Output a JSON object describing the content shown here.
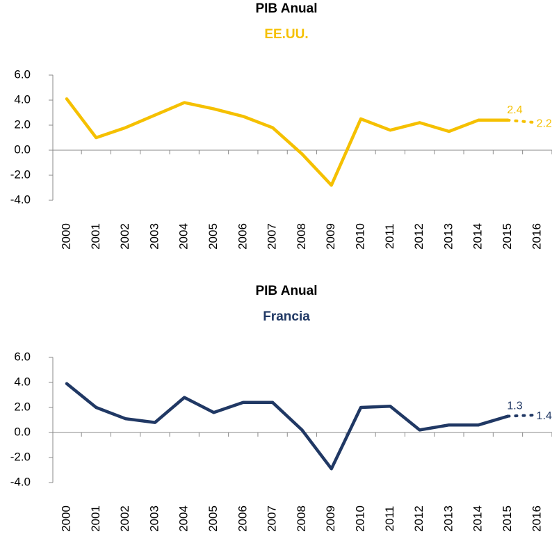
{
  "chart_data": [
    {
      "type": "line",
      "title": "PIB Anual",
      "subtitle": "EE.UU.",
      "categories": [
        "2000",
        "2001",
        "2002",
        "2003",
        "2004",
        "2005",
        "2006",
        "2007",
        "2008",
        "2009",
        "2010",
        "2011",
        "2012",
        "2013",
        "2014",
        "2015",
        "2016"
      ],
      "series": [
        {
          "color": "#f5c000",
          "values": [
            4.1,
            1.0,
            1.8,
            2.8,
            3.8,
            3.3,
            2.7,
            1.8,
            -0.3,
            -2.8,
            2.5,
            1.6,
            2.2,
            1.5,
            2.4,
            2.4,
            2.2
          ],
          "value_labels": [
            null,
            null,
            null,
            null,
            null,
            null,
            null,
            null,
            null,
            null,
            null,
            null,
            null,
            null,
            null,
            "2.4",
            "2.2"
          ]
        }
      ],
      "ylim": [
        -4,
        6
      ],
      "yticks": [
        {
          "value": -4,
          "label": "-4.0"
        },
        {
          "value": -2,
          "label": "-2.0"
        },
        {
          "value": 0,
          "label": "0.0"
        },
        {
          "value": 2,
          "label": "2.0"
        },
        {
          "value": 4,
          "label": "4.0"
        },
        {
          "value": 6,
          "label": "6.0"
        }
      ]
    },
    {
      "type": "line",
      "title": "PIB Anual",
      "subtitle": "Francia",
      "categories": [
        "2000",
        "2001",
        "2002",
        "2003",
        "2004",
        "2005",
        "2006",
        "2007",
        "2008",
        "2009",
        "2010",
        "2011",
        "2012",
        "2013",
        "2014",
        "2015",
        "2016"
      ],
      "series": [
        {
          "color": "#203864",
          "values": [
            3.9,
            2.0,
            1.1,
            0.8,
            2.8,
            1.6,
            2.4,
            2.4,
            0.2,
            -2.9,
            2.0,
            2.1,
            0.2,
            0.6,
            0.6,
            1.3,
            1.4
          ],
          "value_labels": [
            null,
            null,
            null,
            null,
            null,
            null,
            null,
            null,
            null,
            null,
            null,
            null,
            null,
            null,
            null,
            "1.3",
            "1.4"
          ]
        }
      ],
      "ylim": [
        -4,
        6
      ],
      "yticks": [
        {
          "value": -4,
          "label": "-4.0"
        },
        {
          "value": -2,
          "label": "-2.0"
        },
        {
          "value": 0,
          "label": "0.0"
        },
        {
          "value": 2,
          "label": "2.0"
        },
        {
          "value": 4,
          "label": "4.0"
        },
        {
          "value": 6,
          "label": "6.0"
        }
      ]
    }
  ]
}
